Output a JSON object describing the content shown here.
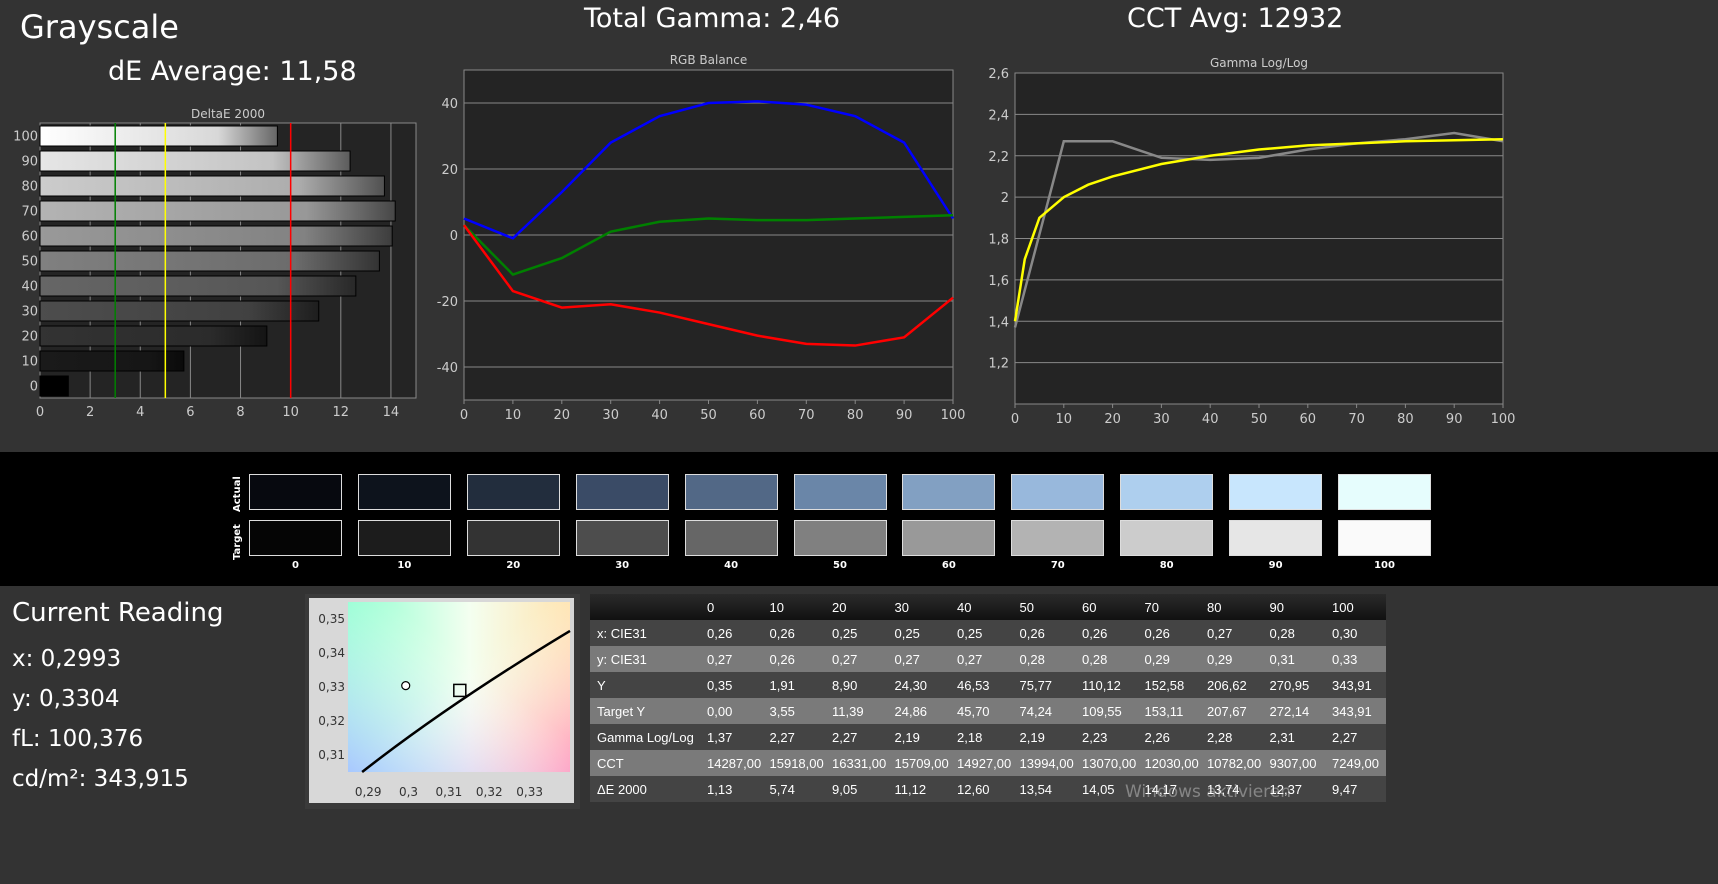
{
  "titles": {
    "grayscale": "Grayscale",
    "de_average": "dE Average: 11,58",
    "total_gamma": "Total Gamma: 2,46",
    "cct_avg": "CCT Avg: 12932"
  },
  "colors": {
    "red": "#ff0000",
    "green": "#008000",
    "blue": "#0000ff",
    "yellow": "#ffff00",
    "gamma_measured": "#888888"
  },
  "chart_data": [
    {
      "type": "bar",
      "title": "DeltaE 2000",
      "orientation": "horizontal",
      "categories": [
        "0",
        "10",
        "20",
        "30",
        "40",
        "50",
        "60",
        "70",
        "80",
        "90",
        "100"
      ],
      "values": [
        1.13,
        5.74,
        9.05,
        11.12,
        12.6,
        13.54,
        14.05,
        14.17,
        13.74,
        12.37,
        9.47
      ],
      "xlim": [
        0,
        15
      ],
      "xticks": [
        "0",
        "2",
        "4",
        "6",
        "8",
        "10",
        "12",
        "14"
      ],
      "threshold_lines": [
        {
          "value": 3,
          "color": "#008000"
        },
        {
          "value": 5,
          "color": "#ffff00"
        },
        {
          "value": 10,
          "color": "#ff0000"
        }
      ],
      "grid": true
    },
    {
      "type": "line",
      "title": "RGB Balance",
      "x": [
        0,
        10,
        20,
        30,
        40,
        50,
        60,
        70,
        80,
        90,
        100
      ],
      "xlim": [
        0,
        100
      ],
      "ylim": [
        -50,
        50
      ],
      "yticks": [
        "40",
        "20",
        "0",
        "-20",
        "-40"
      ],
      "xticks": [
        "0",
        "10",
        "20",
        "30",
        "40",
        "50",
        "60",
        "70",
        "80",
        "90",
        "100"
      ],
      "grid": true,
      "series": [
        {
          "color": "#0000ff",
          "values": [
            5,
            -1,
            13,
            28,
            36,
            40,
            40.5,
            39.5,
            36,
            28,
            5
          ]
        },
        {
          "color": "#008000",
          "values": [
            3,
            -12,
            -7,
            1,
            4,
            5,
            4.5,
            4.5,
            5,
            5.5,
            6
          ]
        },
        {
          "color": "#ff0000",
          "values": [
            3,
            -17,
            -22,
            -21,
            -23.5,
            -27,
            -30.5,
            -33,
            -33.5,
            -31,
            -19
          ]
        }
      ]
    },
    {
      "type": "line",
      "title": "Gamma Log/Log",
      "xlim": [
        0,
        100
      ],
      "ylim": [
        1.0,
        2.6
      ],
      "yticks": [
        "2,6",
        "2,4",
        "2,2",
        "2",
        "1,8",
        "1,6",
        "1,4",
        "1,2"
      ],
      "xticks": [
        "0",
        "10",
        "20",
        "30",
        "40",
        "50",
        "60",
        "70",
        "80",
        "90",
        "100"
      ],
      "grid": true,
      "series": [
        {
          "color": "#888888",
          "x": [
            0,
            10,
            20,
            30,
            40,
            50,
            60,
            70,
            80,
            90,
            100
          ],
          "values": [
            1.37,
            2.27,
            2.27,
            2.19,
            2.18,
            2.19,
            2.23,
            2.26,
            2.28,
            2.31,
            2.27
          ]
        },
        {
          "color": "#ffff00",
          "x": [
            0,
            2,
            5,
            10,
            15,
            20,
            30,
            40,
            50,
            60,
            70,
            80,
            90,
            100
          ],
          "values": [
            1.4,
            1.7,
            1.9,
            2.0,
            2.06,
            2.1,
            2.16,
            2.2,
            2.23,
            2.25,
            2.26,
            2.27,
            2.275,
            2.28
          ]
        }
      ]
    },
    {
      "type": "scatter",
      "title": "",
      "xlim": [
        0.285,
        0.34
      ],
      "ylim": [
        0.305,
        0.355
      ],
      "xticks": [
        "0,29",
        "0,3",
        "0,31",
        "0,32",
        "0,33"
      ],
      "yticks": [
        "0,35",
        "0,34",
        "0,33",
        "0,32",
        "0,31"
      ],
      "points": [
        {
          "marker": "circle",
          "x": 0.2993,
          "y": 0.3304
        },
        {
          "marker": "square",
          "x": 0.3127,
          "y": 0.329
        }
      ]
    }
  ],
  "swatches": {
    "row_labels": [
      "Actual",
      "Target"
    ],
    "labels": [
      "0",
      "10",
      "20",
      "30",
      "40",
      "50",
      "60",
      "70",
      "80",
      "90",
      "100"
    ],
    "actual": [
      "#07090f",
      "#0d131c",
      "#222d3d",
      "#3a4b66",
      "#526886",
      "#6a86a8",
      "#82a0c2",
      "#98b8dc",
      "#aecfee",
      "#c8e6fd",
      "#e6fdfd"
    ],
    "target": [
      "#050505",
      "#1c1c1c",
      "#333333",
      "#4d4d4d",
      "#666666",
      "#808080",
      "#999999",
      "#b3b3b3",
      "#cccccc",
      "#e6e6e6",
      "#fafafa"
    ]
  },
  "current_reading": {
    "title": "Current Reading",
    "x": "x: 0,2993",
    "y": "y: 0,3304",
    "fl": "fL: 100,376",
    "cdm2": "cd/m²: 343,915"
  },
  "table": {
    "headers": [
      "0",
      "10",
      "20",
      "30",
      "40",
      "50",
      "60",
      "70",
      "80",
      "90",
      "100"
    ],
    "rows": [
      {
        "label": "x: CIE31",
        "values": [
          "0,26",
          "0,26",
          "0,25",
          "0,25",
          "0,25",
          "0,26",
          "0,26",
          "0,26",
          "0,27",
          "0,28",
          "0,30"
        ]
      },
      {
        "label": "y: CIE31",
        "values": [
          "0,27",
          "0,26",
          "0,27",
          "0,27",
          "0,27",
          "0,28",
          "0,28",
          "0,29",
          "0,29",
          "0,31",
          "0,33"
        ]
      },
      {
        "label": "Y",
        "values": [
          "0,35",
          "1,91",
          "8,90",
          "24,30",
          "46,53",
          "75,77",
          "110,12",
          "152,58",
          "206,62",
          "270,95",
          "343,91"
        ]
      },
      {
        "label": "Target Y",
        "values": [
          "0,00",
          "3,55",
          "11,39",
          "24,86",
          "45,70",
          "74,24",
          "109,55",
          "153,11",
          "207,67",
          "272,14",
          "343,91"
        ]
      },
      {
        "label": "Gamma Log/Log",
        "values": [
          "1,37",
          "2,27",
          "2,27",
          "2,19",
          "2,18",
          "2,19",
          "2,23",
          "2,26",
          "2,28",
          "2,31",
          "2,27"
        ]
      },
      {
        "label": "CCT",
        "values": [
          "14287,00",
          "15918,00",
          "16331,00",
          "15709,00",
          "14927,00",
          "13994,00",
          "13070,00",
          "12030,00",
          "10782,00",
          "9307,00",
          "7249,00"
        ]
      },
      {
        "label": "ΔE 2000",
        "values": [
          "1,13",
          "5,74",
          "9,05",
          "11,12",
          "12,60",
          "13,54",
          "14,05",
          "14,17",
          "13,74",
          "12,37",
          "9,47"
        ]
      }
    ]
  },
  "watermark": "Windows aktivieren"
}
